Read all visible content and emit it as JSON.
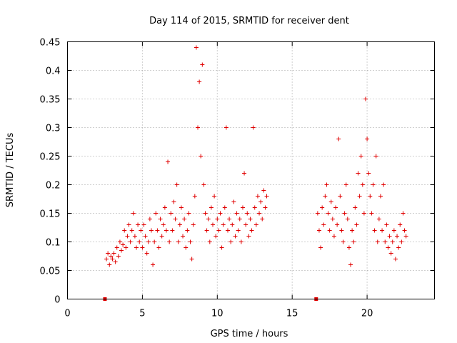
{
  "chart_data": {
    "type": "scatter",
    "title": "Day 114 of 2015, SRMTID for receiver dent",
    "xlabel": "GPS time / hours",
    "ylabel": "SRMTID / TECUs",
    "xlim": [
      0,
      24.5
    ],
    "ylim": [
      0,
      0.45
    ],
    "xticks": [
      0,
      5,
      10,
      15,
      20
    ],
    "yticks": [
      0,
      0.05,
      0.1,
      0.15,
      0.2,
      0.25,
      0.3,
      0.35,
      0.4,
      0.45
    ],
    "xtick_labels": [
      "0",
      "5",
      "10",
      "15",
      "20"
    ],
    "ytick_labels": [
      "0",
      "0.05",
      "0.1",
      "0.15",
      "0.2",
      "0.25",
      "0.3",
      "0.35",
      "0.4",
      "0.45"
    ],
    "grid": true,
    "marker": "+",
    "color": "#e00000",
    "baseline_markers": [
      {
        "x": 2.5,
        "y": 0
      },
      {
        "x": 16.6,
        "y": 0
      }
    ],
    "series": [
      {
        "name": "SRMTID",
        "points": [
          [
            2.6,
            0.07
          ],
          [
            2.7,
            0.08
          ],
          [
            2.8,
            0.06
          ],
          [
            2.9,
            0.075
          ],
          [
            3.0,
            0.07
          ],
          [
            3.1,
            0.08
          ],
          [
            3.2,
            0.065
          ],
          [
            3.3,
            0.09
          ],
          [
            3.4,
            0.075
          ],
          [
            3.5,
            0.1
          ],
          [
            3.6,
            0.085
          ],
          [
            3.7,
            0.095
          ],
          [
            3.8,
            0.12
          ],
          [
            3.9,
            0.09
          ],
          [
            4.0,
            0.11
          ],
          [
            4.1,
            0.13
          ],
          [
            4.2,
            0.1
          ],
          [
            4.3,
            0.12
          ],
          [
            4.4,
            0.15
          ],
          [
            4.5,
            0.11
          ],
          [
            4.6,
            0.09
          ],
          [
            4.7,
            0.13
          ],
          [
            4.8,
            0.1
          ],
          [
            4.9,
            0.12
          ],
          [
            5.0,
            0.09
          ],
          [
            5.1,
            0.13
          ],
          [
            5.2,
            0.11
          ],
          [
            5.3,
            0.08
          ],
          [
            5.4,
            0.1
          ],
          [
            5.5,
            0.14
          ],
          [
            5.6,
            0.12
          ],
          [
            5.7,
            0.06
          ],
          [
            5.8,
            0.1
          ],
          [
            5.9,
            0.15
          ],
          [
            6.0,
            0.12
          ],
          [
            6.1,
            0.09
          ],
          [
            6.2,
            0.14
          ],
          [
            6.3,
            0.11
          ],
          [
            6.4,
            0.13
          ],
          [
            6.5,
            0.16
          ],
          [
            6.6,
            0.12
          ],
          [
            6.7,
            0.24
          ],
          [
            6.8,
            0.1
          ],
          [
            6.9,
            0.15
          ],
          [
            7.0,
            0.12
          ],
          [
            7.1,
            0.17
          ],
          [
            7.2,
            0.14
          ],
          [
            7.3,
            0.2
          ],
          [
            7.4,
            0.1
          ],
          [
            7.5,
            0.13
          ],
          [
            7.6,
            0.16
          ],
          [
            7.7,
            0.11
          ],
          [
            7.8,
            0.14
          ],
          [
            7.9,
            0.09
          ],
          [
            8.0,
            0.12
          ],
          [
            8.1,
            0.15
          ],
          [
            8.2,
            0.1
          ],
          [
            8.3,
            0.07
          ],
          [
            8.4,
            0.13
          ],
          [
            8.5,
            0.18
          ],
          [
            8.6,
            0.44
          ],
          [
            8.7,
            0.3
          ],
          [
            8.8,
            0.38
          ],
          [
            8.9,
            0.25
          ],
          [
            9.0,
            0.41
          ],
          [
            9.1,
            0.2
          ],
          [
            9.2,
            0.15
          ],
          [
            9.3,
            0.12
          ],
          [
            9.4,
            0.14
          ],
          [
            9.5,
            0.1
          ],
          [
            9.6,
            0.16
          ],
          [
            9.7,
            0.13
          ],
          [
            9.8,
            0.18
          ],
          [
            9.9,
            0.11
          ],
          [
            10.0,
            0.14
          ],
          [
            10.1,
            0.12
          ],
          [
            10.2,
            0.15
          ],
          [
            10.3,
            0.09
          ],
          [
            10.4,
            0.13
          ],
          [
            10.5,
            0.16
          ],
          [
            10.6,
            0.3
          ],
          [
            10.7,
            0.12
          ],
          [
            10.8,
            0.14
          ],
          [
            10.9,
            0.1
          ],
          [
            11.0,
            0.13
          ],
          [
            11.1,
            0.17
          ],
          [
            11.2,
            0.11
          ],
          [
            11.3,
            0.15
          ],
          [
            11.4,
            0.12
          ],
          [
            11.5,
            0.14
          ],
          [
            11.6,
            0.1
          ],
          [
            11.7,
            0.16
          ],
          [
            11.8,
            0.22
          ],
          [
            11.9,
            0.13
          ],
          [
            12.0,
            0.15
          ],
          [
            12.1,
            0.11
          ],
          [
            12.2,
            0.14
          ],
          [
            12.3,
            0.12
          ],
          [
            12.4,
            0.3
          ],
          [
            12.5,
            0.16
          ],
          [
            12.6,
            0.13
          ],
          [
            12.7,
            0.18
          ],
          [
            12.8,
            0.15
          ],
          [
            12.9,
            0.17
          ],
          [
            13.0,
            0.14
          ],
          [
            13.1,
            0.19
          ],
          [
            13.2,
            0.16
          ],
          [
            13.3,
            0.18
          ],
          [
            16.7,
            0.15
          ],
          [
            16.8,
            0.12
          ],
          [
            16.9,
            0.09
          ],
          [
            17.0,
            0.16
          ],
          [
            17.1,
            0.13
          ],
          [
            17.2,
            0.18
          ],
          [
            17.3,
            0.2
          ],
          [
            17.4,
            0.15
          ],
          [
            17.5,
            0.12
          ],
          [
            17.6,
            0.17
          ],
          [
            17.7,
            0.14
          ],
          [
            17.8,
            0.11
          ],
          [
            17.9,
            0.16
          ],
          [
            18.0,
            0.13
          ],
          [
            18.1,
            0.28
          ],
          [
            18.2,
            0.18
          ],
          [
            18.3,
            0.12
          ],
          [
            18.4,
            0.1
          ],
          [
            18.5,
            0.15
          ],
          [
            18.6,
            0.2
          ],
          [
            18.7,
            0.14
          ],
          [
            18.8,
            0.09
          ],
          [
            18.9,
            0.06
          ],
          [
            19.0,
            0.12
          ],
          [
            19.1,
            0.1
          ],
          [
            19.2,
            0.16
          ],
          [
            19.3,
            0.13
          ],
          [
            19.4,
            0.22
          ],
          [
            19.5,
            0.18
          ],
          [
            19.6,
            0.25
          ],
          [
            19.7,
            0.2
          ],
          [
            19.8,
            0.15
          ],
          [
            19.9,
            0.35
          ],
          [
            20.0,
            0.28
          ],
          [
            20.1,
            0.22
          ],
          [
            20.2,
            0.18
          ],
          [
            20.3,
            0.15
          ],
          [
            20.4,
            0.2
          ],
          [
            20.5,
            0.12
          ],
          [
            20.6,
            0.25
          ],
          [
            20.7,
            0.1
          ],
          [
            20.8,
            0.14
          ],
          [
            20.9,
            0.18
          ],
          [
            21.0,
            0.12
          ],
          [
            21.1,
            0.2
          ],
          [
            21.2,
            0.1
          ],
          [
            21.3,
            0.13
          ],
          [
            21.4,
            0.09
          ],
          [
            21.5,
            0.11
          ],
          [
            21.6,
            0.08
          ],
          [
            21.7,
            0.1
          ],
          [
            21.8,
            0.12
          ],
          [
            21.9,
            0.07
          ],
          [
            22.0,
            0.11
          ],
          [
            22.1,
            0.09
          ],
          [
            22.2,
            0.13
          ],
          [
            22.3,
            0.1
          ],
          [
            22.4,
            0.15
          ],
          [
            22.5,
            0.12
          ],
          [
            22.6,
            0.11
          ]
        ]
      }
    ]
  }
}
